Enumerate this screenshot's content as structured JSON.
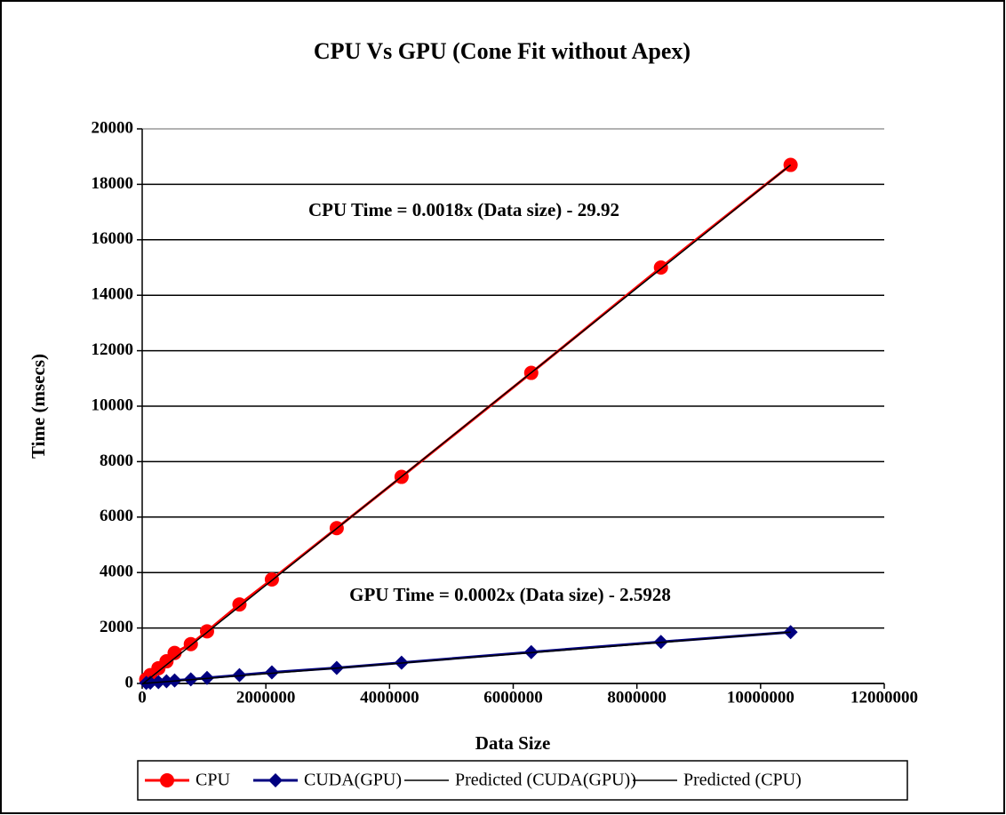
{
  "chart_data": {
    "type": "scatter",
    "title": "CPU Vs GPU (Cone Fit without Apex)",
    "xlabel": "Data Size",
    "ylabel": "Time (msecs)",
    "annotations": [
      "CPU Time = 0.0018x (Data size) - 29.92",
      "GPU Time = 0.0002x (Data size) - 2.5928"
    ],
    "xlim": [
      0,
      12000000
    ],
    "xticks": [
      0,
      2000000,
      4000000,
      6000000,
      8000000,
      10000000,
      12000000
    ],
    "ylim": [
      0,
      20000
    ],
    "yticks": [
      0,
      2000,
      4000,
      6000,
      8000,
      10000,
      12000,
      14000,
      16000,
      18000,
      20000
    ],
    "grid": true,
    "legend": "bottom",
    "series": [
      {
        "name": "CPU",
        "color": "#ff0000",
        "marker": "circle",
        "x": [
          65536,
          131072,
          262144,
          393216,
          524288,
          786432,
          1048576,
          1572864,
          2097152,
          3145728,
          4194304,
          6291456,
          8388608,
          10485760
        ],
        "values": [
          150,
          300,
          550,
          800,
          1100,
          1420,
          1880,
          2850,
          3750,
          5600,
          7450,
          11200,
          15000,
          18700
        ]
      },
      {
        "name": "CUDA(GPU)",
        "color": "#000080",
        "marker": "diamond",
        "x": [
          65536,
          131072,
          262144,
          393216,
          524288,
          786432,
          1048576,
          1572864,
          2097152,
          3145728,
          4194304,
          6291456,
          8388608,
          10485760
        ],
        "values": [
          20,
          30,
          50,
          80,
          110,
          150,
          200,
          300,
          400,
          560,
          750,
          1130,
          1500,
          1850
        ]
      },
      {
        "name": "Predicted (CUDA(GPU))",
        "color": "#000000",
        "marker": "none",
        "x": [
          0,
          10485760
        ],
        "values": [
          -3,
          1850
        ]
      },
      {
        "name": "Predicted (CPU)",
        "color": "#000000",
        "marker": "none",
        "x": [
          0,
          10485760
        ],
        "values": [
          -30,
          18700
        ]
      }
    ]
  }
}
